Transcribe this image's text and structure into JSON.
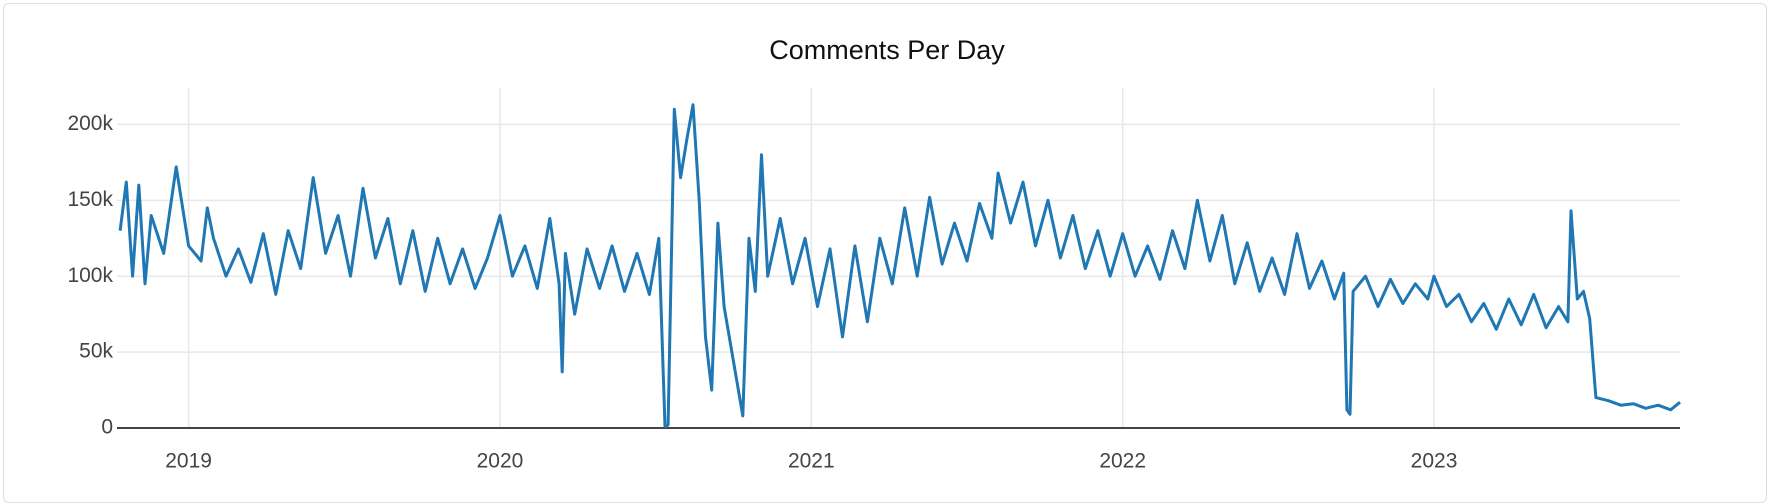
{
  "chart_data": {
    "type": "line",
    "title": "Comments Per Day",
    "color": "#1f77b4",
    "grid": true,
    "xlim": [
      2018.77,
      2023.79
    ],
    "xticks": [
      2019,
      2020,
      2021,
      2022,
      2023
    ],
    "ylim": [
      0,
      224000
    ],
    "yticks": [
      0,
      {
        "value": 50000,
        "label": "50k"
      },
      {
        "value": 100000,
        "label": "100k"
      },
      {
        "value": 150000,
        "label": "150k"
      },
      {
        "value": 200000,
        "label": "200k"
      }
    ],
    "x": [
      2018.78,
      2018.8,
      2018.82,
      2018.84,
      2018.86,
      2018.88,
      2018.92,
      2018.96,
      2019.0,
      2019.04,
      2019.06,
      2019.08,
      2019.12,
      2019.16,
      2019.2,
      2019.24,
      2019.28,
      2019.32,
      2019.36,
      2019.4,
      2019.44,
      2019.48,
      2019.52,
      2019.56,
      2019.6,
      2019.64,
      2019.68,
      2019.72,
      2019.76,
      2019.8,
      2019.84,
      2019.88,
      2019.92,
      2019.96,
      2020.0,
      2020.04,
      2020.08,
      2020.12,
      2020.16,
      2020.19,
      2020.2,
      2020.21,
      2020.24,
      2020.28,
      2020.32,
      2020.36,
      2020.4,
      2020.44,
      2020.48,
      2020.51,
      2020.53,
      2020.54,
      2020.56,
      2020.58,
      2020.6,
      2020.62,
      2020.64,
      2020.66,
      2020.68,
      2020.7,
      2020.72,
      2020.78,
      2020.8,
      2020.82,
      2020.84,
      2020.86,
      2020.9,
      2020.94,
      2020.98,
      2021.02,
      2021.06,
      2021.1,
      2021.14,
      2021.18,
      2021.22,
      2021.26,
      2021.3,
      2021.34,
      2021.38,
      2021.42,
      2021.46,
      2021.5,
      2021.54,
      2021.58,
      2021.6,
      2021.64,
      2021.68,
      2021.72,
      2021.76,
      2021.8,
      2021.84,
      2021.88,
      2021.92,
      2021.96,
      2022.0,
      2022.04,
      2022.08,
      2022.12,
      2022.16,
      2022.2,
      2022.24,
      2022.28,
      2022.32,
      2022.36,
      2022.4,
      2022.44,
      2022.48,
      2022.52,
      2022.56,
      2022.6,
      2022.64,
      2022.68,
      2022.71,
      2022.72,
      2022.73,
      2022.74,
      2022.78,
      2022.82,
      2022.86,
      2022.9,
      2022.94,
      2022.98,
      2023.0,
      2023.04,
      2023.08,
      2023.12,
      2023.16,
      2023.2,
      2023.24,
      2023.28,
      2023.32,
      2023.36,
      2023.4,
      2023.43,
      2023.44,
      2023.46,
      2023.48,
      2023.5,
      2023.52,
      2023.56,
      2023.6,
      2023.64,
      2023.68,
      2023.72,
      2023.76,
      2023.79
    ],
    "values": [
      130000,
      162000,
      100000,
      160000,
      95000,
      140000,
      115000,
      172000,
      120000,
      110000,
      145000,
      125000,
      100000,
      118000,
      96000,
      128000,
      88000,
      130000,
      105000,
      165000,
      115000,
      140000,
      100000,
      158000,
      112000,
      138000,
      95000,
      130000,
      90000,
      125000,
      95000,
      118000,
      92000,
      112000,
      140000,
      100000,
      120000,
      92000,
      138000,
      95000,
      37000,
      115000,
      75000,
      118000,
      92000,
      120000,
      90000,
      115000,
      88000,
      125000,
      1000,
      2000,
      210000,
      165000,
      190000,
      213000,
      150000,
      60000,
      25000,
      135000,
      80000,
      8000,
      125000,
      90000,
      180000,
      100000,
      138000,
      95000,
      125000,
      80000,
      118000,
      60000,
      120000,
      70000,
      125000,
      95000,
      145000,
      100000,
      152000,
      108000,
      135000,
      110000,
      148000,
      125000,
      168000,
      135000,
      162000,
      120000,
      150000,
      112000,
      140000,
      105000,
      130000,
      100000,
      128000,
      100000,
      120000,
      98000,
      130000,
      105000,
      150000,
      110000,
      140000,
      95000,
      122000,
      90000,
      112000,
      88000,
      128000,
      92000,
      110000,
      85000,
      102000,
      12000,
      9000,
      90000,
      100000,
      80000,
      98000,
      82000,
      95000,
      85000,
      100000,
      80000,
      88000,
      70000,
      82000,
      65000,
      85000,
      68000,
      88000,
      66000,
      80000,
      70000,
      143000,
      85000,
      90000,
      72000,
      20000,
      18000,
      15000,
      16000,
      13000,
      15000,
      12000,
      17000
    ]
  }
}
